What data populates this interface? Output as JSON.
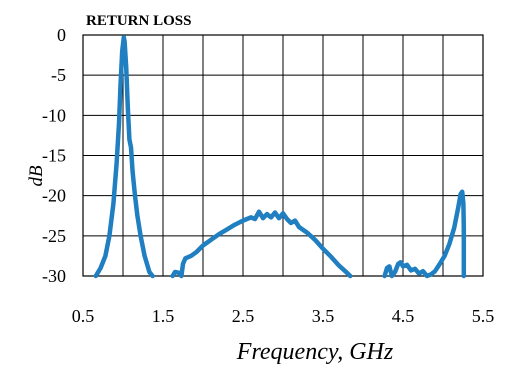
{
  "chart_data": {
    "type": "line",
    "title": "RETURN LOSS",
    "xlabel": "Frequency, GHz",
    "ylabel": "dB",
    "xlim": [
      0.5,
      5.5
    ],
    "ylim": [
      -30,
      0
    ],
    "xticks": [
      "0.5",
      "1.5",
      "2.5",
      "3.5",
      "4.5",
      "5.5"
    ],
    "yticks": [
      "0",
      "-5",
      "-10",
      "-15",
      "-20",
      "-25",
      "-30"
    ],
    "grid": true,
    "series": [
      {
        "color": "#1f7fc1",
        "segments": [
          [
            [
              0.66,
              -30
            ],
            [
              0.72,
              -29
            ],
            [
              0.78,
              -27.5
            ],
            [
              0.83,
              -25
            ],
            [
              0.88,
              -21
            ],
            [
              0.92,
              -16
            ],
            [
              0.95,
              -11
            ],
            [
              0.97,
              -6
            ],
            [
              0.99,
              -2
            ],
            [
              1.01,
              -0.3
            ],
            [
              1.02,
              -0.8
            ],
            [
              1.04,
              -4
            ],
            [
              1.06,
              -9
            ],
            [
              1.08,
              -13
            ],
            [
              1.1,
              -14
            ],
            [
              1.12,
              -17
            ],
            [
              1.15,
              -20
            ],
            [
              1.18,
              -22.5
            ],
            [
              1.22,
              -25
            ],
            [
              1.27,
              -27.5
            ],
            [
              1.33,
              -29.5
            ],
            [
              1.37,
              -30
            ]
          ],
          [
            [
              1.62,
              -30
            ],
            [
              1.65,
              -29.5
            ],
            [
              1.7,
              -29.6
            ],
            [
              1.73,
              -30
            ],
            [
              1.75,
              -28.5
            ],
            [
              1.78,
              -27.8
            ],
            [
              1.85,
              -27.5
            ],
            [
              1.92,
              -27
            ],
            [
              2.0,
              -26.2
            ],
            [
              2.1,
              -25.5
            ],
            [
              2.2,
              -24.8
            ],
            [
              2.3,
              -24.2
            ],
            [
              2.4,
              -23.6
            ],
            [
              2.5,
              -23.1
            ],
            [
              2.6,
              -22.7
            ],
            [
              2.65,
              -22.9
            ],
            [
              2.7,
              -22
            ],
            [
              2.75,
              -22.8
            ],
            [
              2.8,
              -22.3
            ],
            [
              2.85,
              -22.7
            ],
            [
              2.9,
              -22.1
            ],
            [
              2.95,
              -22.8
            ],
            [
              3.0,
              -22.2
            ],
            [
              3.05,
              -22.9
            ],
            [
              3.1,
              -23.4
            ],
            [
              3.15,
              -23.1
            ],
            [
              3.2,
              -23.9
            ],
            [
              3.3,
              -24.6
            ],
            [
              3.4,
              -25.5
            ],
            [
              3.5,
              -26.6
            ],
            [
              3.6,
              -27.6
            ],
            [
              3.7,
              -28.7
            ],
            [
              3.8,
              -29.6
            ],
            [
              3.84,
              -30
            ]
          ],
          [
            [
              4.27,
              -30
            ],
            [
              4.3,
              -29
            ],
            [
              4.33,
              -28.8
            ],
            [
              4.36,
              -30
            ],
            [
              4.4,
              -29.5
            ],
            [
              4.44,
              -28.5
            ],
            [
              4.47,
              -28.3
            ],
            [
              4.5,
              -28.8
            ],
            [
              4.55,
              -28.6
            ],
            [
              4.6,
              -29.3
            ],
            [
              4.65,
              -29.1
            ],
            [
              4.7,
              -29.7
            ],
            [
              4.75,
              -29.4
            ],
            [
              4.8,
              -30
            ],
            [
              4.85,
              -29.8
            ],
            [
              4.9,
              -29.4
            ],
            [
              4.96,
              -28.5
            ],
            [
              5.02,
              -27.5
            ],
            [
              5.08,
              -26
            ],
            [
              5.14,
              -24
            ],
            [
              5.19,
              -21.5
            ],
            [
              5.22,
              -19.8
            ],
            [
              5.24,
              -19.5
            ],
            [
              5.255,
              -21
            ],
            [
              5.26,
              -24
            ],
            [
              5.26,
              -30
            ]
          ]
        ]
      }
    ]
  }
}
